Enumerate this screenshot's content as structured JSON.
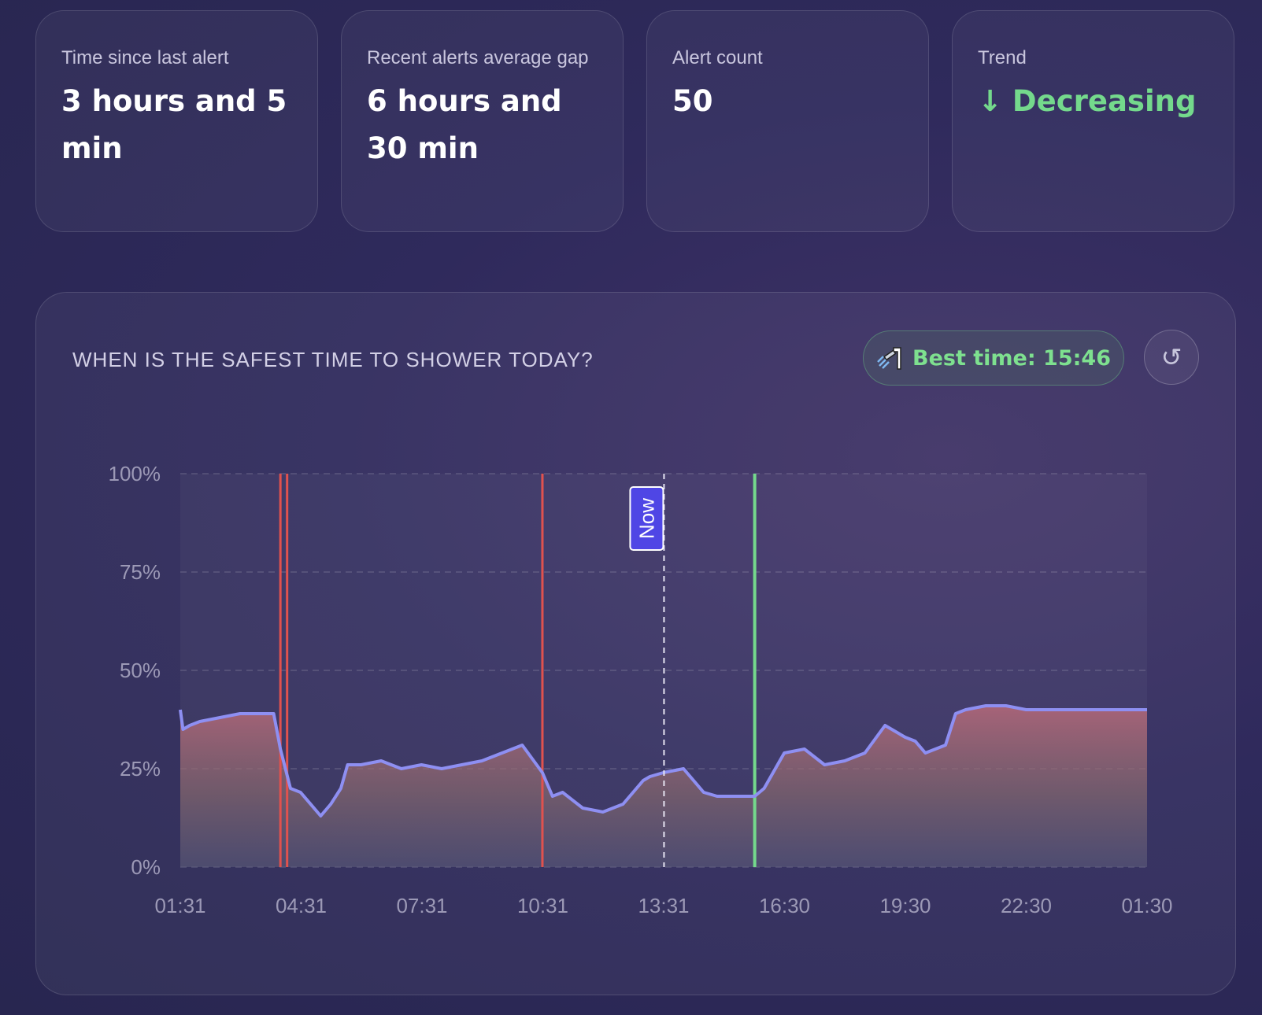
{
  "cards": [
    {
      "label": "Time since last alert",
      "value": "3 hours and 5 min"
    },
    {
      "label": "Recent alerts average gap",
      "value": "6 hours and 30 min"
    },
    {
      "label": "Alert count",
      "value": "50"
    },
    {
      "label": "Trend",
      "value": "↓ Decreasing"
    }
  ],
  "panel": {
    "title": "WHEN IS THE SAFEST TIME TO SHOWER TODAY?",
    "best_time_label": "Best time: 15:46",
    "best_time_icon": "shower-icon",
    "reset_icon": "refresh-icon",
    "reset_glyph": "↺"
  },
  "colors": {
    "line": "#8e8ff2",
    "alert": "#e0524e",
    "best": "#74d98c",
    "now_badge": "#4f46e5"
  },
  "chart_data": {
    "type": "line",
    "title": "",
    "xlabel": "",
    "ylabel": "",
    "ylim": [
      0,
      100
    ],
    "y_ticks": [
      "0%",
      "25%",
      "50%",
      "75%",
      "100%"
    ],
    "x_ticks": [
      "01:31",
      "04:31",
      "07:31",
      "10:31",
      "13:31",
      "16:30",
      "19:30",
      "22:30",
      "01:30"
    ],
    "grid": true,
    "series": [
      {
        "name": "",
        "x": [
          "01:31",
          "01:35",
          "01:45",
          "02:00",
          "02:30",
          "03:00",
          "03:50",
          "04:00",
          "04:15",
          "04:30",
          "05:00",
          "05:15",
          "05:30",
          "05:40",
          "06:00",
          "06:30",
          "07:00",
          "07:30",
          "08:00",
          "08:30",
          "09:00",
          "09:30",
          "10:00",
          "10:30",
          "10:45",
          "11:00",
          "11:30",
          "12:00",
          "12:30",
          "13:00",
          "13:10",
          "13:30",
          "14:00",
          "14:30",
          "14:50",
          "15:30",
          "15:46",
          "16:00",
          "16:30",
          "17:00",
          "17:30",
          "18:00",
          "18:30",
          "19:00",
          "19:30",
          "19:45",
          "20:00",
          "20:30",
          "20:45",
          "21:00",
          "21:30",
          "22:00",
          "22:30",
          "23:00",
          "23:30",
          "00:00",
          "00:30",
          "01:00",
          "01:30"
        ],
        "values": [
          40,
          35,
          36,
          37,
          38,
          39,
          39,
          30,
          20,
          19,
          13,
          16,
          20,
          26,
          26,
          27,
          25,
          26,
          25,
          26,
          27,
          29,
          31,
          24,
          18,
          19,
          15,
          14,
          16,
          22,
          23,
          24,
          25,
          19,
          18,
          18,
          18,
          20,
          29,
          30,
          26,
          27,
          29,
          36,
          33,
          32,
          29,
          31,
          39,
          40,
          41,
          41,
          40,
          40,
          40,
          40,
          40,
          40,
          40
        ]
      }
    ],
    "markers": {
      "alerts": [
        "04:00",
        "04:10",
        "10:30"
      ],
      "now": "13:31",
      "now_label": "Now",
      "best": "15:46"
    }
  }
}
